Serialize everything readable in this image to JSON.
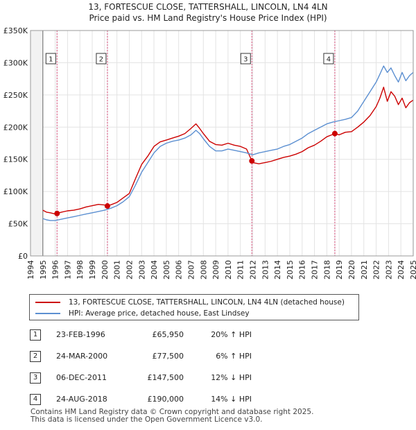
{
  "chart_data": {
    "type": "line",
    "title": [
      "13, FORTESCUE CLOSE, TATTERSHALL, LINCOLN, LN4 4LN",
      "Price paid vs. HM Land Registry's House Price Index (HPI)"
    ],
    "ylim": [
      0,
      350000
    ],
    "xlim": [
      1994,
      2025
    ],
    "y_ticks": [
      {
        "value": 0,
        "label": "£0"
      },
      {
        "value": 50000,
        "label": "£50K"
      },
      {
        "value": 100000,
        "label": "£100K"
      },
      {
        "value": 150000,
        "label": "£150K"
      },
      {
        "value": 200000,
        "label": "£200K"
      },
      {
        "value": 250000,
        "label": "£250K"
      },
      {
        "value": 300000,
        "label": "£300K"
      },
      {
        "value": 350000,
        "label": "£350K"
      }
    ],
    "x_ticks": [
      "1994",
      "1995",
      "1996",
      "1997",
      "1998",
      "1999",
      "2000",
      "2001",
      "2002",
      "2003",
      "2004",
      "2005",
      "2006",
      "2007",
      "2008",
      "2009",
      "2010",
      "2011",
      "2012",
      "2013",
      "2014",
      "2015",
      "2016",
      "2017",
      "2018",
      "2019",
      "2020",
      "2021",
      "2022",
      "2023",
      "2024",
      "2025"
    ],
    "series": [
      {
        "name": "13, FORTESCUE CLOSE, TATTERSHALL, LINCOLN, LN4 4LN (detached house)",
        "color": "#cc0000",
        "x": [
          1995.0,
          1995.3,
          1995.6,
          1996.0,
          1996.15,
          1996.5,
          1997.0,
          1997.5,
          1998.0,
          1998.5,
          1999.0,
          1999.5,
          2000.0,
          2000.23,
          2000.6,
          2001.0,
          2001.5,
          2002.0,
          2002.5,
          2003.0,
          2003.5,
          2004.0,
          2004.5,
          2005.0,
          2005.5,
          2006.0,
          2006.5,
          2007.0,
          2007.4,
          2007.7,
          2008.0,
          2008.5,
          2009.0,
          2009.5,
          2010.0,
          2010.5,
          2011.0,
          2011.5,
          2011.93,
          2012.0,
          2012.5,
          2013.0,
          2013.5,
          2014.0,
          2014.5,
          2015.0,
          2015.5,
          2016.0,
          2016.5,
          2017.0,
          2017.5,
          2018.0,
          2018.4,
          2018.65,
          2019.0,
          2019.5,
          2020.0,
          2020.5,
          2021.0,
          2021.5,
          2022.0,
          2022.3,
          2022.6,
          2022.9,
          2023.2,
          2023.5,
          2023.8,
          2024.1,
          2024.4,
          2024.7,
          2025.0
        ],
        "values": [
          71000,
          68000,
          67000,
          65000,
          65950,
          68000,
          70000,
          71000,
          73000,
          76000,
          78000,
          80000,
          79000,
          77500,
          80000,
          83000,
          90000,
          97000,
          120000,
          142000,
          155000,
          170000,
          177000,
          180000,
          183000,
          186000,
          190000,
          198000,
          205000,
          198000,
          190000,
          178000,
          173000,
          172000,
          175000,
          172000,
          170000,
          166000,
          147500,
          145000,
          143000,
          145000,
          147000,
          150000,
          153000,
          155000,
          158000,
          162000,
          168000,
          172000,
          178000,
          185000,
          188000,
          190000,
          188000,
          192000,
          193000,
          200000,
          208000,
          218000,
          232000,
          245000,
          262000,
          240000,
          255000,
          248000,
          235000,
          245000,
          230000,
          238000,
          242000
        ]
      },
      {
        "name": "HPI: Average price, detached house, East Lindsey",
        "color": "#5b8fd1",
        "x": [
          1995.0,
          1995.3,
          1995.6,
          1996.0,
          1996.5,
          1997.0,
          1997.5,
          1998.0,
          1998.5,
          1999.0,
          1999.5,
          2000.0,
          2000.5,
          2001.0,
          2001.5,
          2002.0,
          2002.5,
          2003.0,
          2003.5,
          2004.0,
          2004.5,
          2005.0,
          2005.5,
          2006.0,
          2006.5,
          2007.0,
          2007.4,
          2007.7,
          2008.0,
          2008.5,
          2009.0,
          2009.5,
          2010.0,
          2010.5,
          2011.0,
          2011.5,
          2012.0,
          2012.5,
          2013.0,
          2013.5,
          2014.0,
          2014.5,
          2015.0,
          2015.5,
          2016.0,
          2016.5,
          2017.0,
          2017.5,
          2018.0,
          2018.5,
          2019.0,
          2019.5,
          2020.0,
          2020.5,
          2021.0,
          2021.5,
          2022.0,
          2022.3,
          2022.6,
          2022.9,
          2023.2,
          2023.5,
          2023.8,
          2024.1,
          2024.4,
          2024.7,
          2025.0
        ],
        "values": [
          58000,
          56000,
          55000,
          55000,
          57000,
          59000,
          61000,
          63000,
          65000,
          67000,
          69000,
          71000,
          74000,
          78000,
          84000,
          92000,
          110000,
          130000,
          145000,
          160000,
          170000,
          175000,
          178000,
          180000,
          183000,
          188000,
          195000,
          190000,
          182000,
          170000,
          163000,
          163000,
          166000,
          164000,
          162000,
          160000,
          157000,
          160000,
          162000,
          164000,
          166000,
          170000,
          173000,
          178000,
          183000,
          190000,
          195000,
          200000,
          205000,
          208000,
          210000,
          212000,
          215000,
          225000,
          240000,
          255000,
          270000,
          282000,
          295000,
          285000,
          292000,
          280000,
          270000,
          285000,
          272000,
          280000,
          285000
        ]
      }
    ],
    "sales": [
      {
        "num": "1",
        "date": "23-FEB-1996",
        "year": 1996.15,
        "price": 65950,
        "price_label": "£65,950",
        "hpi": "20% ↑ HPI"
      },
      {
        "num": "2",
        "date": "24-MAR-2000",
        "year": 2000.23,
        "price": 77500,
        "price_label": "£77,500",
        "hpi": "6% ↑ HPI"
      },
      {
        "num": "3",
        "date": "06-DEC-2011",
        "year": 2011.93,
        "price": 147500,
        "price_label": "£147,500",
        "hpi": "12% ↓ HPI"
      },
      {
        "num": "4",
        "date": "24-AUG-2018",
        "year": 2018.65,
        "price": 190000,
        "price_label": "£190,000",
        "hpi": "14% ↓ HPI"
      }
    ]
  },
  "legend": {
    "property_label": "13, FORTESCUE CLOSE, TATTERSHALL, LINCOLN, LN4 4LN (detached house)",
    "hpi_label": "HPI: Average price, detached house, East Lindsey",
    "property_color": "#cc0000",
    "hpi_color": "#5b8fd1"
  },
  "footer": {
    "line1": "Contains HM Land Registry data © Crown copyright and database right 2025.",
    "line2": "This data is licensed under the Open Government Licence v3.0."
  }
}
